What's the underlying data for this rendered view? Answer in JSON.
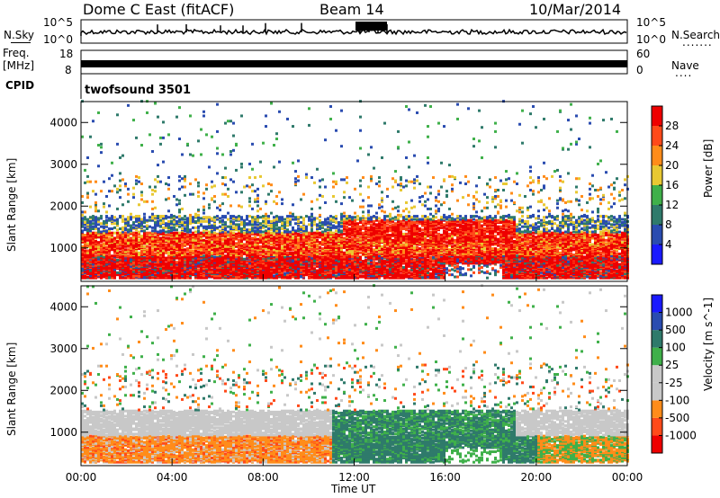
{
  "header": {
    "title": "Dome C East (fitACF)",
    "beam": "Beam 14",
    "date": "10/Mar/2014"
  },
  "side_labels": {
    "nsky": "N.Sky",
    "freq": "Freq.",
    "freq_unit": "[MHz]",
    "cpid": "CPID",
    "nsearch": "N.Search",
    "nave": "Nave"
  },
  "cpid_name": "twofsound 3501",
  "noise_panel": {
    "left_ticks": [
      "10^5",
      "10^0"
    ],
    "right_ticks": [
      "10^5",
      "10^0"
    ]
  },
  "freq_panel": {
    "left_ticks": [
      "18",
      "8"
    ],
    "right_ticks": [
      "60",
      "0"
    ]
  },
  "x_axis": {
    "label": "Time UT",
    "ticks": [
      "00:00",
      "04:00",
      "08:00",
      "12:00",
      "16:00",
      "20:00",
      "00:00"
    ]
  },
  "colors": {
    "power": [
      "#1a1aff",
      "#2a4cb0",
      "#2f7a6b",
      "#3fb04a",
      "#e8c832",
      "#ff8c1a",
      "#ff4a1a",
      "#ee0000"
    ],
    "velocity": [
      "#ee0000",
      "#ff4a1a",
      "#ff8c1a",
      "#c8c8c8",
      "#c8c8c8",
      "#3fb04a",
      "#2f7a6b",
      "#2a4cb0",
      "#1a1aff"
    ]
  },
  "chart_data": [
    {
      "type": "heatmap",
      "name": "Power",
      "ylabel": "Slant Range [km]",
      "ylim": [
        200,
        4500
      ],
      "y_ticks": [
        "1000",
        "2000",
        "3000",
        "4000"
      ],
      "colorbar_label": "Power [dB]",
      "colorbar_ticks": [
        "28",
        "24",
        "20",
        "16",
        "12",
        "8",
        "4"
      ],
      "xlim_hours": [
        0,
        24
      ],
      "bands": [
        {
          "x": [
            0,
            24
          ],
          "range_km": [
            300,
            800
          ],
          "power_db": 28
        },
        {
          "x": [
            0,
            24
          ],
          "range_km": [
            800,
            1300
          ],
          "power_db": 24
        },
        {
          "x": [
            0,
            24
          ],
          "range_km": [
            1300,
            1700
          ],
          "power_db": 8
        },
        {
          "x": [
            11.5,
            19
          ],
          "range_km": [
            1200,
            1600
          ],
          "power_db": 28
        }
      ]
    },
    {
      "type": "heatmap",
      "name": "Velocity",
      "ylabel": "Slant Range [km]",
      "ylim": [
        200,
        4500
      ],
      "y_ticks": [
        "1000",
        "2000",
        "3000",
        "4000"
      ],
      "colorbar_label": "Velocity [m s^-1]",
      "colorbar_ticks": [
        "1000",
        "500",
        "100",
        "25",
        "-25",
        "-100",
        "-500",
        "-1000"
      ],
      "xlim_hours": [
        0,
        24
      ],
      "bands": [
        {
          "x": [
            0,
            11
          ],
          "range_km": [
            300,
            900
          ],
          "velocity": -100
        },
        {
          "x": [
            0,
            24
          ],
          "range_km": [
            900,
            1500
          ],
          "velocity": 0
        },
        {
          "x": [
            11,
            20
          ],
          "range_km": [
            300,
            1500
          ],
          "velocity": 100
        }
      ]
    }
  ]
}
